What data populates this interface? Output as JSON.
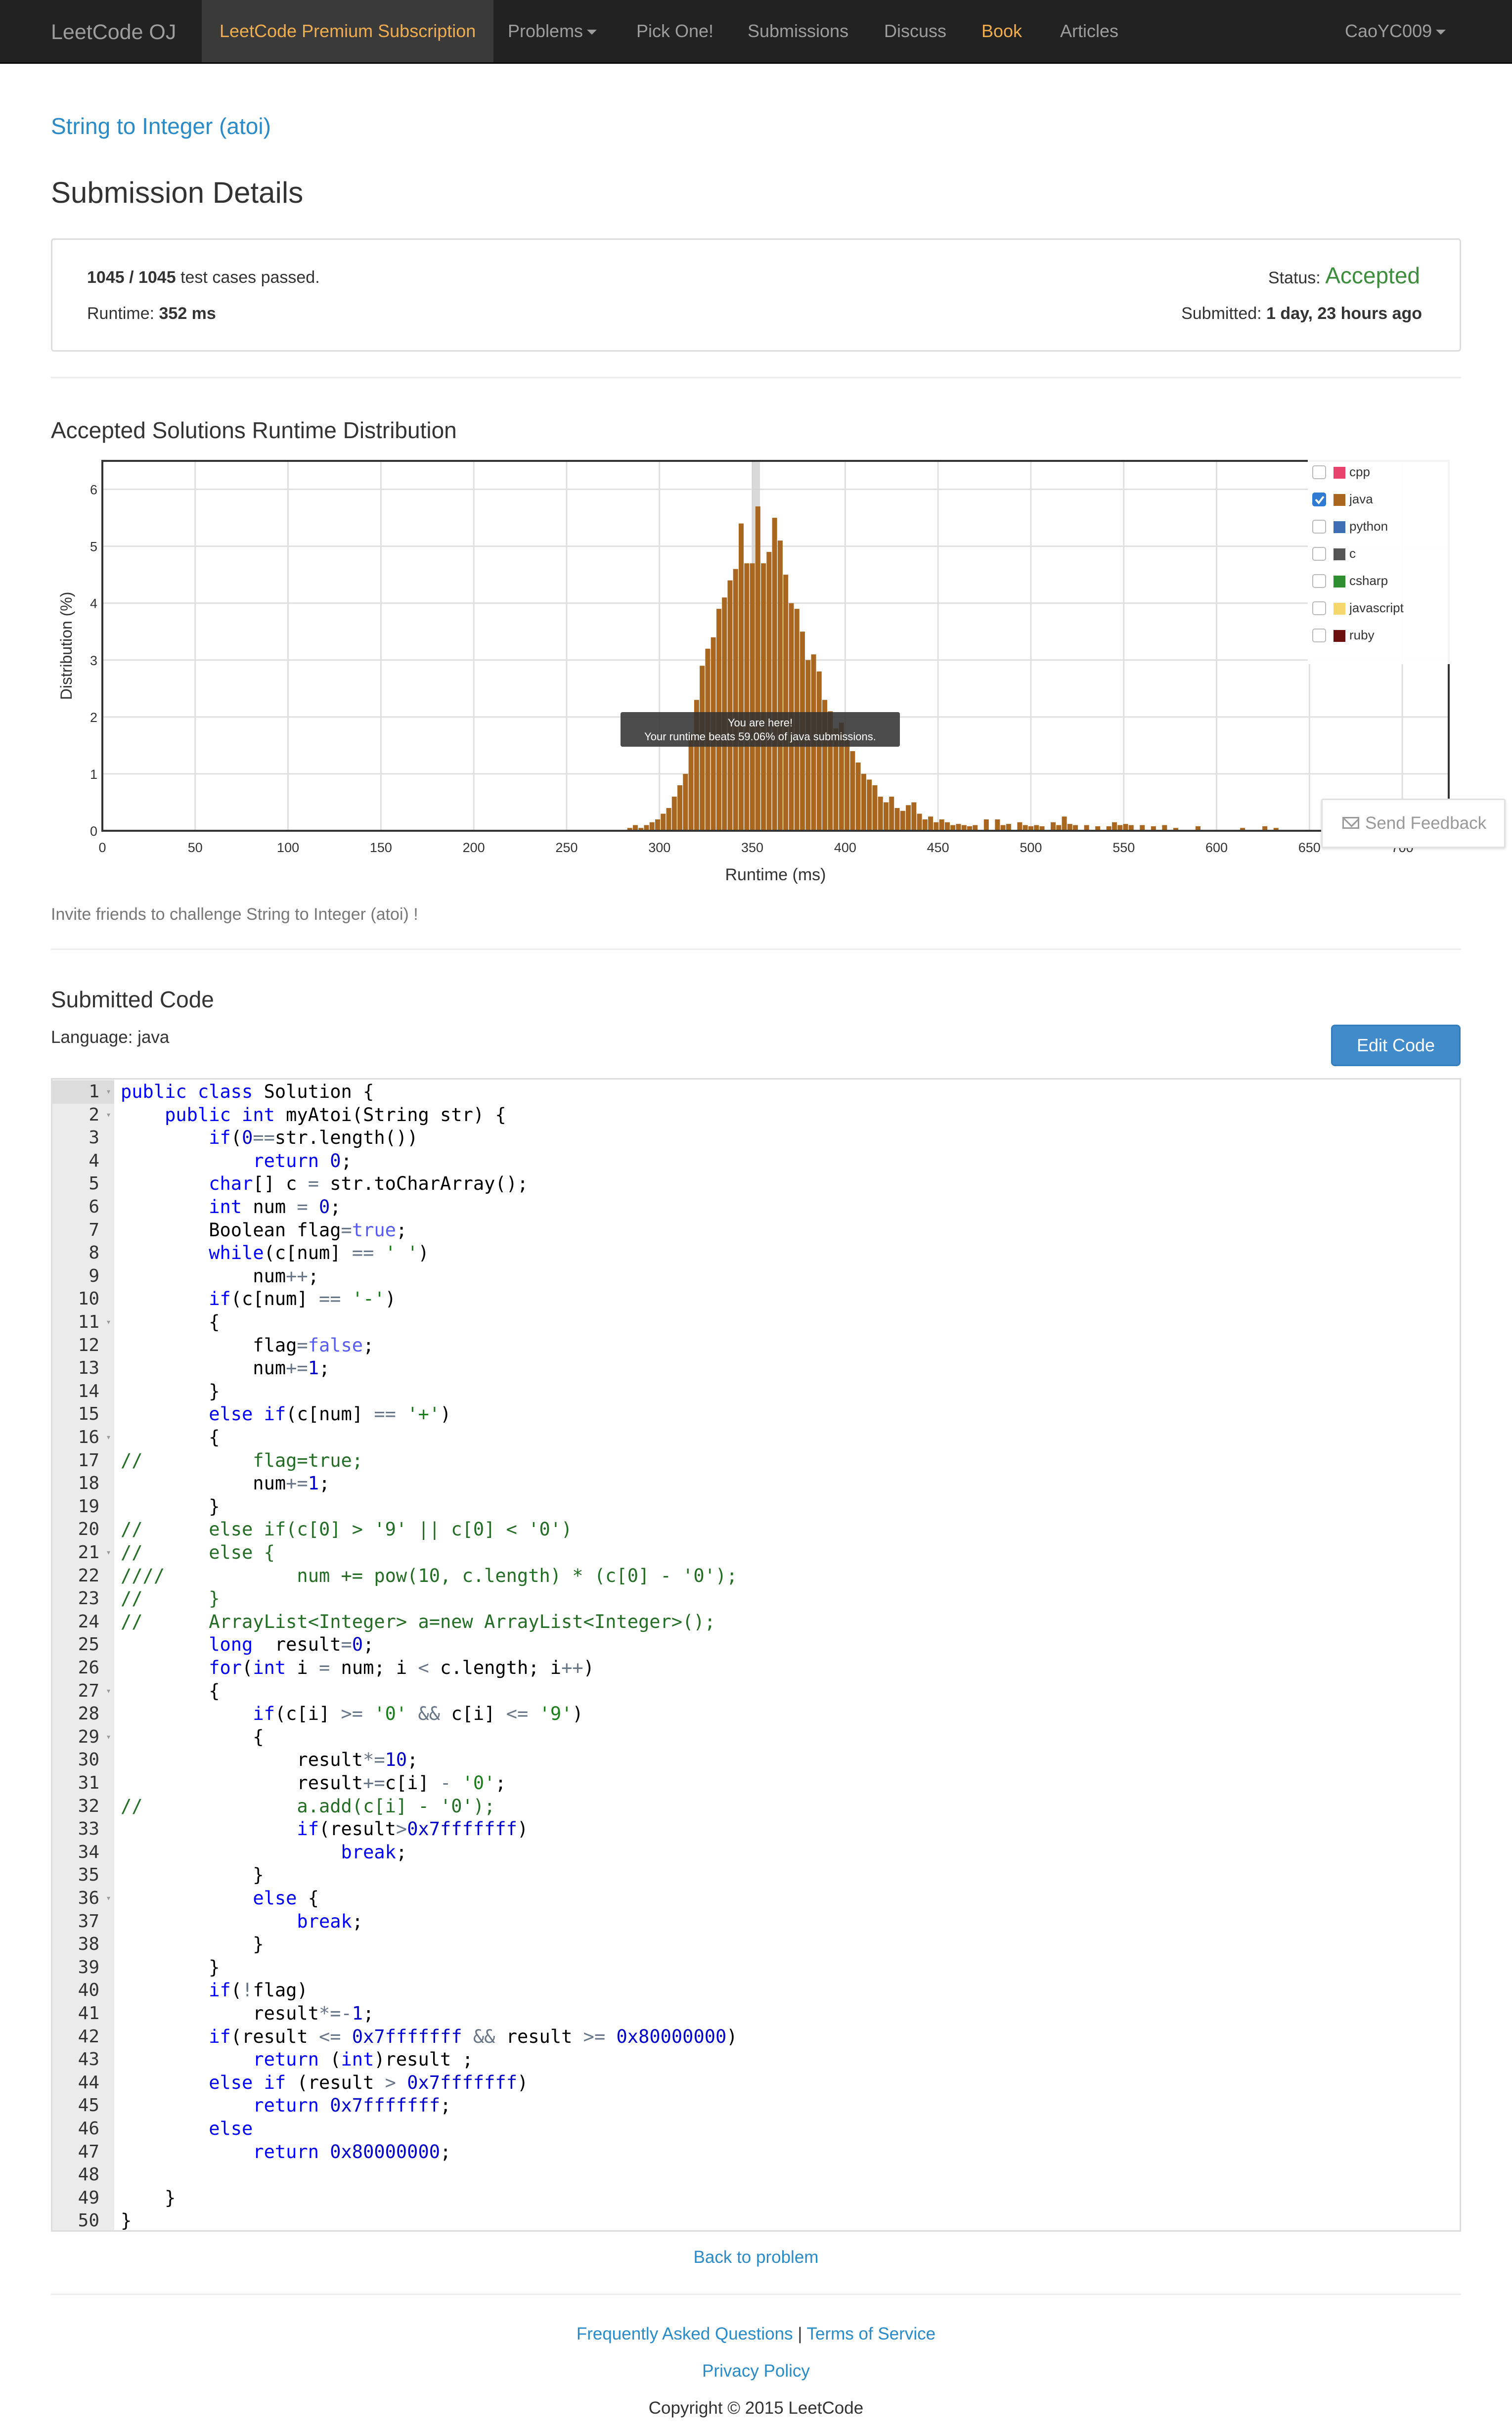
{
  "nav": {
    "brand": "LeetCode OJ",
    "premium": "LeetCode Premium Subscription",
    "problems": "Problems",
    "pick_one": "Pick One!",
    "submissions": "Submissions",
    "discuss": "Discuss",
    "book": "Book",
    "articles": "Articles",
    "user": "CaoYC009"
  },
  "problem_title": "String to Integer (atoi)",
  "heading": "Submission Details",
  "summary": {
    "cases_passed": "1045 / 1045",
    "cases_suffix": " test cases passed.",
    "runtime_label": "Runtime: ",
    "runtime_value": "352 ms",
    "status_label": "Status: ",
    "status_value": "Accepted",
    "submitted_label": "Submitted: ",
    "submitted_value": "1 day, 23 hours ago"
  },
  "chart_heading": "Accepted Solutions Runtime Distribution",
  "chart_data": {
    "type": "bar",
    "xlabel": "Runtime (ms)",
    "ylabel": "Distribution (%)",
    "xlim": [
      0,
      725
    ],
    "ylim": [
      0,
      6.5
    ],
    "xticks": [
      0,
      50,
      100,
      150,
      200,
      250,
      300,
      350,
      400,
      450,
      500,
      550,
      600,
      650,
      700
    ],
    "yticks": [
      0,
      1,
      2,
      3,
      4,
      5,
      6
    ],
    "highlight_x": 352,
    "series_color": "#a8661f",
    "x": [
      284,
      287,
      290,
      293,
      296,
      299,
      302,
      305,
      308,
      311,
      314,
      317,
      320,
      323,
      326,
      329,
      332,
      335,
      338,
      341,
      344,
      347,
      350,
      353,
      356,
      359,
      362,
      365,
      368,
      371,
      374,
      377,
      380,
      383,
      386,
      389,
      392,
      395,
      398,
      401,
      404,
      407,
      410,
      413,
      416,
      419,
      422,
      425,
      428,
      431,
      434,
      437,
      440,
      443,
      446,
      449,
      452,
      455,
      458,
      461,
      464,
      467,
      470,
      476,
      482,
      485,
      488,
      494,
      497,
      500,
      503,
      506,
      512,
      515,
      518,
      521,
      524,
      530,
      536,
      542,
      545,
      548,
      551,
      554,
      560,
      566,
      572,
      578,
      590,
      614,
      626,
      632
    ],
    "values": [
      0.05,
      0.1,
      0.05,
      0.1,
      0.15,
      0.2,
      0.3,
      0.4,
      0.6,
      0.8,
      1.0,
      1.7,
      2.3,
      2.9,
      3.2,
      3.4,
      3.9,
      4.1,
      4.4,
      4.6,
      5.4,
      4.7,
      4.7,
      5.7,
      4.7,
      4.9,
      5.5,
      5.1,
      4.5,
      4.0,
      3.9,
      3.5,
      3.0,
      3.1,
      2.8,
      2.3,
      2.1,
      1.8,
      1.9,
      1.6,
      1.4,
      1.2,
      1.0,
      0.9,
      0.8,
      0.6,
      0.5,
      0.6,
      0.4,
      0.35,
      0.45,
      0.5,
      0.3,
      0.2,
      0.25,
      0.15,
      0.2,
      0.15,
      0.1,
      0.12,
      0.1,
      0.08,
      0.1,
      0.2,
      0.2,
      0.1,
      0.12,
      0.15,
      0.1,
      0.08,
      0.1,
      0.08,
      0.15,
      0.1,
      0.25,
      0.12,
      0.1,
      0.1,
      0.08,
      0.08,
      0.15,
      0.1,
      0.12,
      0.1,
      0.1,
      0.08,
      0.1,
      0.05,
      0.08,
      0.05,
      0.08,
      0.05
    ],
    "legend": [
      "cpp",
      "java",
      "python",
      "c",
      "csharp",
      "javascript",
      "ruby"
    ],
    "legend_colors": [
      "#e8426d",
      "#a8661f",
      "#3e6fb5",
      "#555555",
      "#2f8f2f",
      "#f5d76e",
      "#6b0f0f"
    ],
    "legend_checked": [
      false,
      true,
      false,
      false,
      false,
      false,
      false
    ],
    "legend_placement": "top-right",
    "tooltip_line1": "You are here!",
    "tooltip_line2": "Your runtime beats 59.06% of java submissions."
  },
  "invite": "Invite friends to challenge String to Integer (atoi) !",
  "code_heading": "Submitted Code",
  "language": "Language: java",
  "edit_code": "Edit Code",
  "code_lines": [
    "public class Solution {",
    "    public int myAtoi(String str) {",
    "        if(0==str.length())",
    "            return 0;",
    "        char[] c = str.toCharArray();",
    "        int num = 0;",
    "        Boolean flag=true;",
    "        while(c[num] == ' ')",
    "            num++;",
    "        if(c[num] == '-')",
    "        {",
    "            flag=false;",
    "            num+=1;",
    "        }",
    "        else if(c[num] == '+')",
    "        {",
    "//          flag=true;",
    "            num+=1;",
    "        }",
    "//      else if(c[0] > '9' || c[0] < '0')",
    "//      else {",
    "////            num += pow(10, c.length) * (c[0] - '0');",
    "//      }",
    "//      ArrayList<Integer> a=new ArrayList<Integer>();",
    "        long  result=0;",
    "        for(int i = num; i < c.length; i++)",
    "        {",
    "            if(c[i] >= '0' && c[i] <= '9')",
    "            {",
    "                result*=10;",
    "                result+=c[i] - '0';",
    "//              a.add(c[i] - '0');",
    "                if(result>0x7fffffff)",
    "                    break;",
    "            }",
    "            else {",
    "                break;",
    "            }",
    "        }",
    "        if(!flag)",
    "            result*=-1;",
    "        if(result <= 0x7fffffff && result >= 0x80000000)",
    "            return (int)result ;",
    "        else if (result > 0x7fffffff)",
    "            return 0x7fffffff;",
    "        else",
    "            return 0x80000000;",
    "",
    "    }",
    "}"
  ],
  "fold_lines": [
    1,
    2,
    11,
    16,
    21,
    27,
    29,
    36
  ],
  "back_link": "Back to problem",
  "footer": {
    "faq": "Frequently Asked Questions",
    "sep": " | ",
    "terms": "Terms of Service",
    "privacy": "Privacy Policy",
    "copyright": "Copyright © 2015 LeetCode"
  },
  "feedback": "Send Feedback"
}
